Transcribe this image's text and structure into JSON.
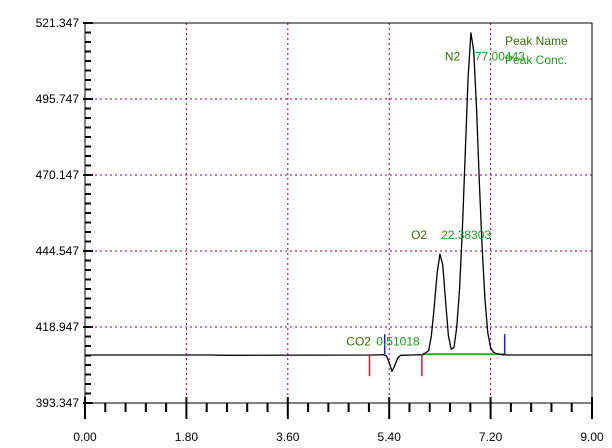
{
  "chart_data": {
    "type": "line",
    "title": "",
    "xlabel": "",
    "ylabel": "",
    "xlim": [
      0.0,
      9.0
    ],
    "ylim": [
      393.347,
      521.347
    ],
    "x_ticks": [
      "0.00",
      "1.80",
      "3.60",
      "5.40",
      "7.20",
      "9.00"
    ],
    "x_tick_values": [
      0.0,
      1.8,
      3.6,
      5.4,
      7.2,
      9.0
    ],
    "y_ticks": [
      "393.347",
      "418.947",
      "444.547",
      "470.147",
      "495.747",
      "521.347"
    ],
    "y_tick_values": [
      393.347,
      418.947,
      444.547,
      470.147,
      495.747,
      521.347
    ],
    "grid": true,
    "legend": {
      "position": "top-right",
      "name_label": "Peak Name",
      "conc_label": "Peak Conc."
    },
    "series": [
      {
        "x": [
          0.0,
          2.2,
          2.5,
          5.1,
          5.3,
          5.35,
          5.4,
          5.45,
          5.5,
          5.55,
          5.6,
          5.8,
          6.0,
          6.1,
          6.15,
          6.2,
          6.25,
          6.3,
          6.35,
          6.4,
          6.45,
          6.5,
          6.55,
          6.6,
          6.65,
          6.7,
          6.75,
          6.8,
          6.85,
          6.9,
          6.95,
          7.0,
          7.05,
          7.1,
          7.15,
          7.2,
          7.25,
          7.3,
          7.35,
          7.4,
          7.5,
          7.6,
          9.0
        ],
        "y": [
          409.5,
          409.5,
          409.4,
          409.5,
          409.6,
          409.2,
          407.0,
          404.0,
          406.0,
          408.5,
          409.4,
          409.5,
          409.6,
          411.0,
          416.0,
          426.0,
          437.0,
          443.5,
          440.0,
          428.0,
          416.0,
          411.5,
          412.0,
          419.0,
          432.0,
          452.0,
          478.0,
          503.0,
          518.0,
          512.0,
          493.0,
          468.0,
          446.0,
          428.0,
          417.0,
          412.0,
          410.5,
          410.0,
          409.8,
          409.6,
          409.5,
          409.5,
          409.5
        ]
      }
    ],
    "baseline": {
      "x_start": 5.98,
      "x_end": 7.45,
      "y": 409.8,
      "color": "#22c022"
    },
    "peak_markers": [
      {
        "x": 5.05,
        "color": "#cc2222"
      },
      {
        "x": 5.98,
        "color": "#cc2222"
      },
      {
        "x": 5.32,
        "color": "#2222cc"
      },
      {
        "x": 7.45,
        "color": "#2222cc"
      }
    ],
    "annotations": [
      {
        "name": "CO2",
        "conc": "0.51018",
        "x": 5.1,
        "y": 414.0
      },
      {
        "name": "O2",
        "conc": "22.38303",
        "x": 6.25,
        "y": 450.0
      },
      {
        "name": "N2",
        "conc": "77.00443",
        "x": 6.85,
        "y": 510.0
      }
    ],
    "colors": {
      "grid": "#800080",
      "trace": "#000000",
      "axis": "#000000"
    }
  }
}
